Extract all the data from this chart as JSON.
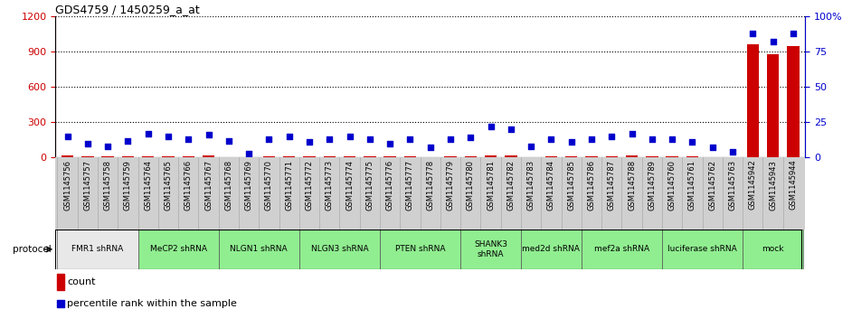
{
  "title": "GDS4759 / 1450259_a_at",
  "samples": [
    "GSM1145756",
    "GSM1145757",
    "GSM1145758",
    "GSM1145759",
    "GSM1145764",
    "GSM1145765",
    "GSM1145766",
    "GSM1145767",
    "GSM1145768",
    "GSM1145769",
    "GSM1145770",
    "GSM1145771",
    "GSM1145772",
    "GSM1145773",
    "GSM1145774",
    "GSM1145775",
    "GSM1145776",
    "GSM1145777",
    "GSM1145778",
    "GSM1145779",
    "GSM1145780",
    "GSM1145781",
    "GSM1145782",
    "GSM1145783",
    "GSM1145784",
    "GSM1145785",
    "GSM1145786",
    "GSM1145787",
    "GSM1145788",
    "GSM1145789",
    "GSM1145760",
    "GSM1145761",
    "GSM1145762",
    "GSM1145763",
    "GSM1145942",
    "GSM1145943",
    "GSM1145944"
  ],
  "counts": [
    18,
    10,
    12,
    8,
    10,
    12,
    8,
    14,
    5,
    3,
    9,
    11,
    7,
    9,
    11,
    9,
    7,
    11,
    5,
    9,
    9,
    18,
    14,
    5,
    9,
    7,
    9,
    11,
    14,
    9,
    9,
    7,
    5,
    3,
    960,
    880,
    950
  ],
  "percentiles": [
    15,
    10,
    8,
    12,
    17,
    15,
    13,
    16,
    12,
    3,
    13,
    15,
    11,
    13,
    15,
    13,
    10,
    13,
    7,
    13,
    14,
    22,
    20,
    8,
    13,
    11,
    13,
    15,
    17,
    13,
    13,
    11,
    7,
    4,
    88,
    82,
    88
  ],
  "ylim_left": [
    0,
    1200
  ],
  "ylim_right": [
    0,
    100
  ],
  "yticks_left": [
    0,
    300,
    600,
    900,
    1200
  ],
  "yticks_right": [
    0,
    25,
    50,
    75,
    100
  ],
  "bar_color": "#CC0000",
  "dot_color": "#0000CC",
  "protocol_groups": [
    {
      "label": "FMR1 shRNA",
      "start": 0,
      "end": 4,
      "color": "#e8e8e8"
    },
    {
      "label": "MeCP2 shRNA",
      "start": 4,
      "end": 8,
      "color": "#90ee90"
    },
    {
      "label": "NLGN1 shRNA",
      "start": 8,
      "end": 12,
      "color": "#90ee90"
    },
    {
      "label": "NLGN3 shRNA",
      "start": 12,
      "end": 16,
      "color": "#90ee90"
    },
    {
      "label": "PTEN shRNA",
      "start": 16,
      "end": 20,
      "color": "#90ee90"
    },
    {
      "label": "SHANK3\nshRNA",
      "start": 20,
      "end": 23,
      "color": "#90ee90"
    },
    {
      "label": "med2d shRNA",
      "start": 23,
      "end": 26,
      "color": "#90ee90"
    },
    {
      "label": "mef2a shRNA",
      "start": 26,
      "end": 30,
      "color": "#90ee90"
    },
    {
      "label": "luciferase shRNA",
      "start": 30,
      "end": 34,
      "color": "#90ee90"
    },
    {
      "label": "mock",
      "start": 34,
      "end": 37,
      "color": "#90ee90"
    }
  ],
  "legend_count_color": "#CC0000",
  "legend_dot_color": "#0000CC",
  "left_axis_color": "#CC0000",
  "right_axis_color": "#0000CC",
  "bg_color": "#ffffff",
  "sample_label_bg": "#d0d0d0",
  "grid_color": "#000000"
}
